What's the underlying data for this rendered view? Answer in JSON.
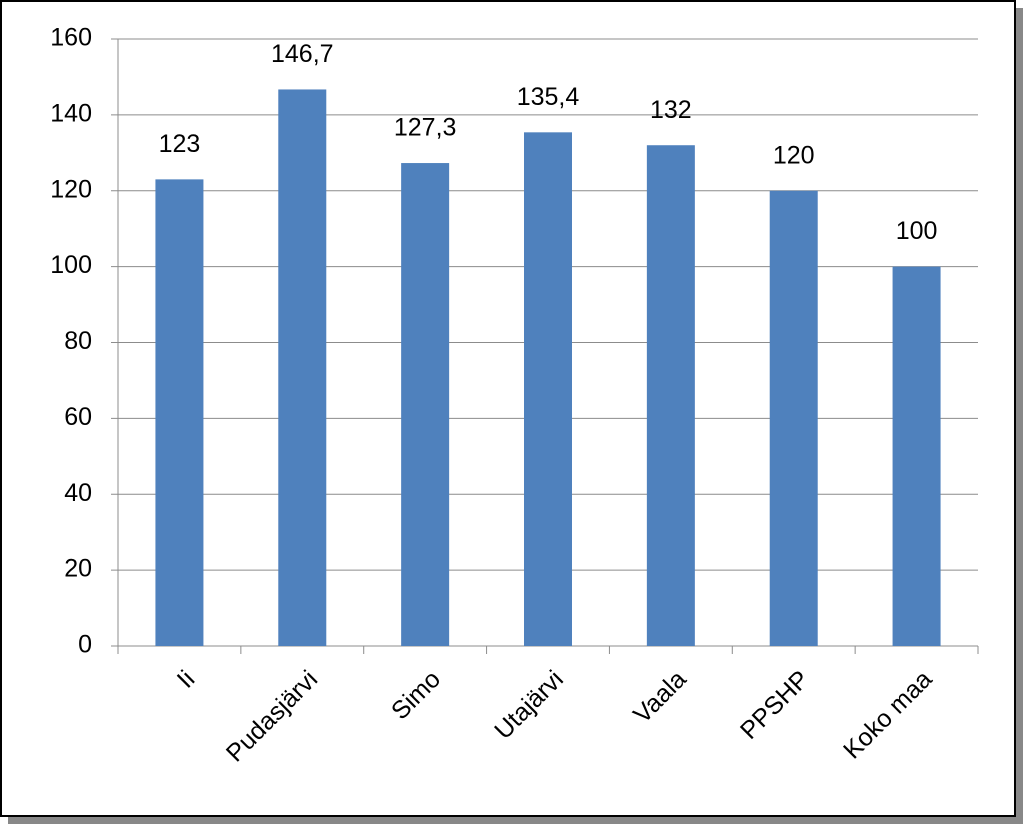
{
  "chart_data": {
    "type": "bar",
    "categories": [
      "Ii",
      "Pudasjärvi",
      "Simo",
      "Utajärvi",
      "Vaala",
      "PPSHP",
      "Koko maa"
    ],
    "values": [
      123,
      146.7,
      127.3,
      135.4,
      132,
      120,
      100
    ],
    "value_labels": [
      "123",
      "146,7",
      "127,3",
      "135,4",
      "132",
      "120",
      "100"
    ],
    "color": "#4f81bd",
    "ylim": [
      0,
      160
    ],
    "yticks": [
      0,
      20,
      40,
      60,
      80,
      100,
      120,
      140,
      160
    ],
    "grid": true
  }
}
